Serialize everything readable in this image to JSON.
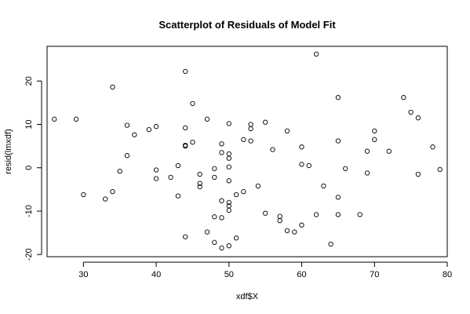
{
  "chart_data": {
    "type": "scatter",
    "title": "Scatterplot of Residuals of Model Fit",
    "xlabel": "xdf$X",
    "ylabel": "resid(lmxdf)",
    "xlim": [
      25,
      80
    ],
    "ylim": [
      -20.5,
      28
    ],
    "xticks": [
      30,
      40,
      50,
      60,
      70,
      80
    ],
    "yticks": [
      -20,
      -10,
      0,
      10,
      20
    ],
    "grid": false,
    "points": [
      [
        26,
        11.2
      ],
      [
        29,
        11.2
      ],
      [
        30,
        -6.2
      ],
      [
        33,
        -7.2
      ],
      [
        34,
        18.6
      ],
      [
        34,
        -5.5
      ],
      [
        35,
        -0.8
      ],
      [
        36,
        9.8
      ],
      [
        36,
        2.8
      ],
      [
        37,
        7.6
      ],
      [
        39,
        8.8
      ],
      [
        40,
        9.5
      ],
      [
        40,
        -0.5
      ],
      [
        40,
        -2.5
      ],
      [
        42,
        -2.2
      ],
      [
        43,
        0.5
      ],
      [
        43,
        -6.5
      ],
      [
        44,
        22.2
      ],
      [
        44,
        9.2
      ],
      [
        44,
        5.2
      ],
      [
        44,
        5.0
      ],
      [
        44,
        -15.9
      ],
      [
        45,
        14.8
      ],
      [
        45,
        5.9
      ],
      [
        46,
        -1.5
      ],
      [
        46,
        -3.6
      ],
      [
        46,
        -4.4
      ],
      [
        47,
        11.2
      ],
      [
        47,
        -14.8
      ],
      [
        48,
        -0.2
      ],
      [
        48,
        -2.2
      ],
      [
        48,
        -11.3
      ],
      [
        48,
        -17.2
      ],
      [
        49,
        5.5
      ],
      [
        49,
        3.5
      ],
      [
        49,
        -7.6
      ],
      [
        49,
        -11.5
      ],
      [
        49,
        -18.5
      ],
      [
        50,
        10.2
      ],
      [
        50,
        3.2
      ],
      [
        50,
        2.2
      ],
      [
        50,
        0.2
      ],
      [
        50,
        -3.0
      ],
      [
        50,
        -8.0
      ],
      [
        50,
        -8.8
      ],
      [
        50,
        -9.8
      ],
      [
        50,
        -18.0
      ],
      [
        51,
        -6.2
      ],
      [
        51,
        -16.2
      ],
      [
        52,
        6.5
      ],
      [
        52,
        -5.5
      ],
      [
        53,
        10.0
      ],
      [
        53,
        9.0
      ],
      [
        53,
        6.2
      ],
      [
        54,
        -4.2
      ],
      [
        55,
        10.5
      ],
      [
        55,
        -10.5
      ],
      [
        56,
        4.2
      ],
      [
        57,
        -11.2
      ],
      [
        57,
        -12.2
      ],
      [
        58,
        8.5
      ],
      [
        58,
        -14.5
      ],
      [
        59,
        -14.8
      ],
      [
        60,
        4.8
      ],
      [
        60,
        0.8
      ],
      [
        60,
        -13.2
      ],
      [
        61,
        0.5
      ],
      [
        62,
        26.2
      ],
      [
        62,
        -10.8
      ],
      [
        63,
        -4.2
      ],
      [
        64,
        -17.6
      ],
      [
        65,
        16.2
      ],
      [
        65,
        6.2
      ],
      [
        65,
        -6.8
      ],
      [
        65,
        -10.8
      ],
      [
        66,
        -0.2
      ],
      [
        68,
        -10.8
      ],
      [
        69,
        3.8
      ],
      [
        69,
        -1.2
      ],
      [
        70,
        8.5
      ],
      [
        70,
        6.5
      ],
      [
        72,
        3.8
      ],
      [
        74,
        16.2
      ],
      [
        75,
        12.8
      ],
      [
        76,
        11.5
      ],
      [
        76,
        -1.5
      ],
      [
        78,
        4.8
      ],
      [
        79,
        -0.4
      ]
    ]
  }
}
